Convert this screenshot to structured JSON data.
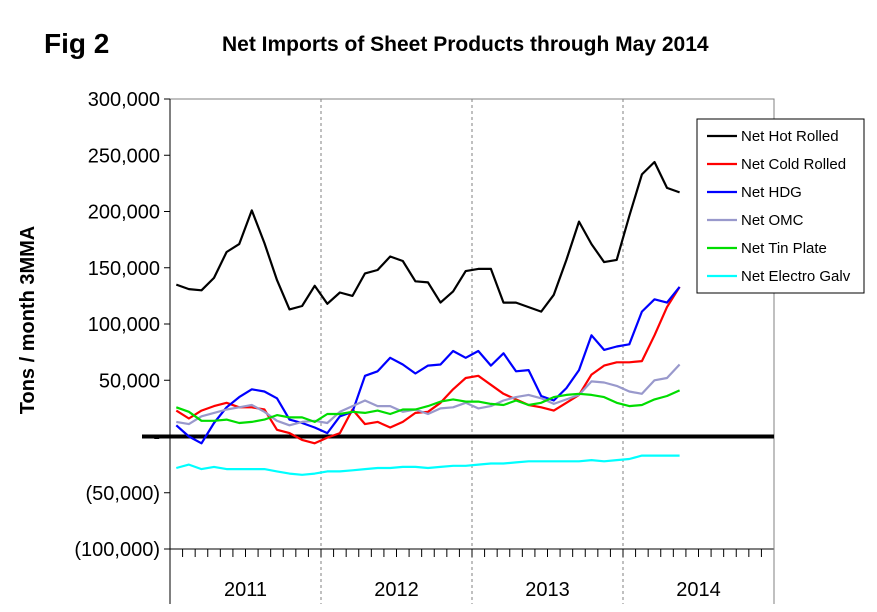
{
  "figure_label": "Fig 2",
  "chart_data": {
    "type": "line",
    "title": "Net Imports of Sheet Products through May 2014",
    "xlabel": "",
    "ylabel": "Tons / month 3MMA",
    "ylim": [
      -100000,
      300000
    ],
    "y_ticks": [
      {
        "value": 300000,
        "label": "300,000"
      },
      {
        "value": 250000,
        "label": "250,000"
      },
      {
        "value": 200000,
        "label": "200,000"
      },
      {
        "value": 150000,
        "label": "150,000"
      },
      {
        "value": 100000,
        "label": "100,000"
      },
      {
        "value": 50000,
        "label": "50,000"
      },
      {
        "value": 0,
        "label": "-"
      },
      {
        "value": -50000,
        "label": "(50,000)"
      },
      {
        "value": -100000,
        "label": "(100,000)"
      }
    ],
    "years": [
      "2011",
      "2012",
      "2013",
      "2014"
    ],
    "months_total": 41,
    "legend_position": "top-right",
    "series": [
      {
        "name": "Net Hot Rolled",
        "color": "#000000",
        "values": [
          135000,
          131000,
          130000,
          141000,
          164000,
          171000,
          201000,
          172000,
          139000,
          113000,
          116000,
          134000,
          118000,
          128000,
          125000,
          145000,
          148000,
          160000,
          156000,
          138000,
          137000,
          119000,
          129000,
          147000,
          149000,
          149000,
          119000,
          119000,
          115000,
          111000,
          126000,
          157000,
          191000,
          171000,
          155000,
          157000,
          196000,
          233000,
          244000,
          221000,
          217000
        ]
      },
      {
        "name": "Net Cold Rolled",
        "color": "#ff0000",
        "values": [
          23000,
          16000,
          23000,
          27000,
          30000,
          26000,
          26000,
          24000,
          6000,
          3000,
          -3000,
          -6000,
          -1000,
          3000,
          24000,
          11000,
          13000,
          8000,
          13000,
          21000,
          22000,
          30000,
          42000,
          52000,
          54000,
          46000,
          38000,
          33000,
          28000,
          26000,
          23000,
          30000,
          37000,
          55000,
          63000,
          66000,
          66000,
          67000,
          90000,
          115000,
          133000
        ]
      },
      {
        "name": "Net HDG",
        "color": "#0000ff",
        "values": [
          10000,
          0,
          -6000,
          12000,
          26000,
          35000,
          42000,
          40000,
          34000,
          15000,
          12000,
          8000,
          3000,
          18000,
          22000,
          54000,
          58000,
          70000,
          64000,
          56000,
          63000,
          64000,
          76000,
          70000,
          76000,
          63000,
          74000,
          58000,
          59000,
          36000,
          32000,
          43000,
          59000,
          90000,
          77000,
          80000,
          82000,
          111000,
          122000,
          119000,
          133000
        ]
      },
      {
        "name": "Net OMC",
        "color": "#9999cc",
        "values": [
          13000,
          11000,
          18000,
          21000,
          24000,
          26000,
          28000,
          22000,
          14000,
          10000,
          13000,
          14000,
          12000,
          22000,
          27000,
          32000,
          27000,
          27000,
          22000,
          24000,
          20000,
          25000,
          26000,
          30000,
          25000,
          27000,
          32000,
          35000,
          37000,
          34000,
          29000,
          33000,
          37000,
          49000,
          48000,
          45000,
          40000,
          38000,
          50000,
          52000,
          64000
        ]
      },
      {
        "name": "Net Tin Plate",
        "color": "#00dd00",
        "values": [
          26000,
          22000,
          14000,
          14000,
          15000,
          12000,
          13000,
          15000,
          19000,
          17000,
          17000,
          13000,
          20000,
          20000,
          22000,
          21000,
          23000,
          20000,
          24000,
          24000,
          27000,
          31000,
          33000,
          31000,
          31000,
          29000,
          28000,
          32000,
          28000,
          30000,
          35000,
          37000,
          38000,
          37000,
          35000,
          30000,
          27000,
          28000,
          33000,
          36000,
          41000
        ]
      },
      {
        "name": "Net Electro Galv",
        "color": "#00ffff",
        "values": [
          -28000,
          -25000,
          -29000,
          -27000,
          -29000,
          -29000,
          -29000,
          -29000,
          -31000,
          -33000,
          -34000,
          -33000,
          -31000,
          -31000,
          -30000,
          -29000,
          -28000,
          -28000,
          -27000,
          -27000,
          -28000,
          -27000,
          -26000,
          -26000,
          -25000,
          -24000,
          -24000,
          -23000,
          -22000,
          -22000,
          -22000,
          -22000,
          -22000,
          -21000,
          -22000,
          -21000,
          -20000,
          -17000,
          -17000,
          -17000,
          -17000
        ]
      }
    ]
  }
}
